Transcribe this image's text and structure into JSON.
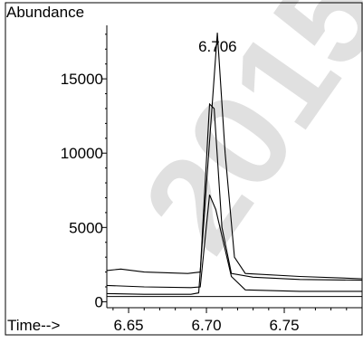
{
  "chart_data": {
    "type": "line",
    "ylabel": "Abundance",
    "xlabel": "Time-->",
    "xlim": [
      6.636,
      6.8
    ],
    "ylim": [
      -400,
      18600
    ],
    "x_ticks": [
      6.65,
      6.7,
      6.75
    ],
    "x_tick_labels": [
      "6.65",
      "6.70",
      "6.75"
    ],
    "y_ticks": [
      0,
      5000,
      10000,
      15000
    ],
    "y_tick_labels": [
      "0",
      "5000",
      "10000",
      "15000"
    ],
    "grid": false,
    "annotations": [
      {
        "text": "6.706",
        "x": 6.706,
        "y": 17800
      }
    ],
    "series": [
      {
        "values": [
          [
            6.636,
            2100
          ],
          [
            6.645,
            2200
          ],
          [
            6.66,
            2000
          ],
          [
            6.675,
            1950
          ],
          [
            6.688,
            1900
          ],
          [
            6.696,
            2000
          ],
          [
            6.702,
            13300
          ],
          [
            6.705,
            13000
          ],
          [
            6.71,
            5000
          ],
          [
            6.716,
            1900
          ],
          [
            6.73,
            1650
          ],
          [
            6.76,
            1500
          ],
          [
            6.8,
            1450
          ]
        ]
      },
      {
        "values": [
          [
            6.636,
            1100
          ],
          [
            6.66,
            1000
          ],
          [
            6.69,
            950
          ],
          [
            6.696,
            1000
          ],
          [
            6.702,
            7200
          ],
          [
            6.706,
            6200
          ],
          [
            6.716,
            1700
          ],
          [
            6.725,
            800
          ],
          [
            6.76,
            700
          ],
          [
            6.8,
            700
          ]
        ]
      },
      {
        "values": [
          [
            6.636,
            550
          ],
          [
            6.66,
            500
          ],
          [
            6.69,
            500
          ],
          [
            6.695,
            600
          ],
          [
            6.707,
            18100
          ],
          [
            6.712,
            10000
          ],
          [
            6.718,
            3000
          ],
          [
            6.725,
            1900
          ],
          [
            6.76,
            1700
          ],
          [
            6.8,
            1550
          ]
        ]
      }
    ],
    "baseline": {
      "x_start": 6.636,
      "x_end": 6.8,
      "y": 350
    }
  },
  "watermark_text": "2015",
  "colors": {
    "line": "#000000",
    "frame": "#000000",
    "watermark": "#c8c8c8"
  }
}
